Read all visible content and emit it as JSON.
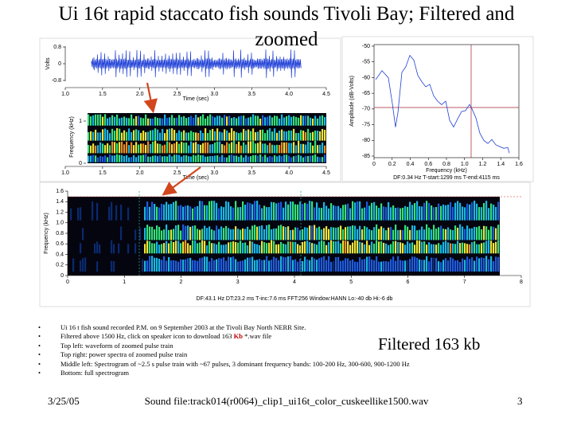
{
  "title": "Ui 16t rapid staccato fish sounds Tivoli Bay; Filtered and zoomed",
  "waveform": {
    "y_label": "Volts",
    "x_label": "Time (sec)",
    "y_ticks": [
      "0.8",
      "0",
      "-0.8"
    ],
    "x_ticks": [
      "1.0",
      "1.5",
      "2.0",
      "2.5",
      "3.0",
      "3.5",
      "4.0",
      "4.5"
    ]
  },
  "spectrogram_zoomed": {
    "y_label": "Frequency (kHz)",
    "x_label": "Time (sec)",
    "y_ticks": [
      "1",
      "0"
    ],
    "x_ticks": [
      "1.0",
      "1.5",
      "2.0",
      "2.5",
      "3.0",
      "3.5",
      "4.0",
      "4.5"
    ]
  },
  "power_spectrum": {
    "y_label": "Amplitude (dB-Volts)",
    "x_label": "Frequency (kHz)",
    "y_ticks": [
      "-50",
      "-55",
      "-60",
      "-65",
      "-70",
      "-75",
      "-80",
      "-85"
    ],
    "x_ticks": [
      "0",
      "0.2",
      "0.4",
      "0.6",
      "0.8",
      "1.0",
      "1.2",
      "1.4",
      "1.6"
    ],
    "info": "DF:0.34 Hz    T-start:1299 ms    T-end:4115 ms"
  },
  "spectrogram_full": {
    "y_label": "Frequency (kHz)",
    "y_ticks": [
      "1.6",
      "1.4",
      "1.2",
      "1.0",
      "0.8",
      "0.6",
      "0.4",
      "0.2",
      "0"
    ],
    "x_ticks": [
      "0",
      "1",
      "2",
      "3",
      "4",
      "5",
      "6",
      "7",
      "8"
    ],
    "info": "DF:43.1 Hz   DT:23.2 ms   T-inc:7.6 ms   FFT:256   Window:HANN   Lo:-40 db   Hi:-6 db"
  },
  "bullets": [
    {
      "text": "Ui 16 t fish sound recorded  P.M. on 9 September 2003 at the Tivoli Bay North NERR Site."
    },
    {
      "text": "Filtered above 1500 Hz, click on speaker icon to download 163 ",
      "highlight": "Kb",
      "after": " *.wav file"
    },
    {
      "text": "Top left: waveform of zoomed pulse train"
    },
    {
      "text": "Top right: power spectra of zoomed pulse train"
    },
    {
      "text": "Middle left: Spectrogram of ~2.5 s pulse train with ~67 pulses, 3 dominant frequency bands: 100-200 Hz, 300-600, 900-1200 Hz"
    },
    {
      "text": "Bottom: full spectrogram"
    }
  ],
  "callout": "Filtered 163 kb",
  "footer": {
    "date": "3/25/05",
    "file": "Sound file:track014(r0064)_clip1_ui16t_color_cuskeellike1500.wav",
    "page": "3"
  }
}
